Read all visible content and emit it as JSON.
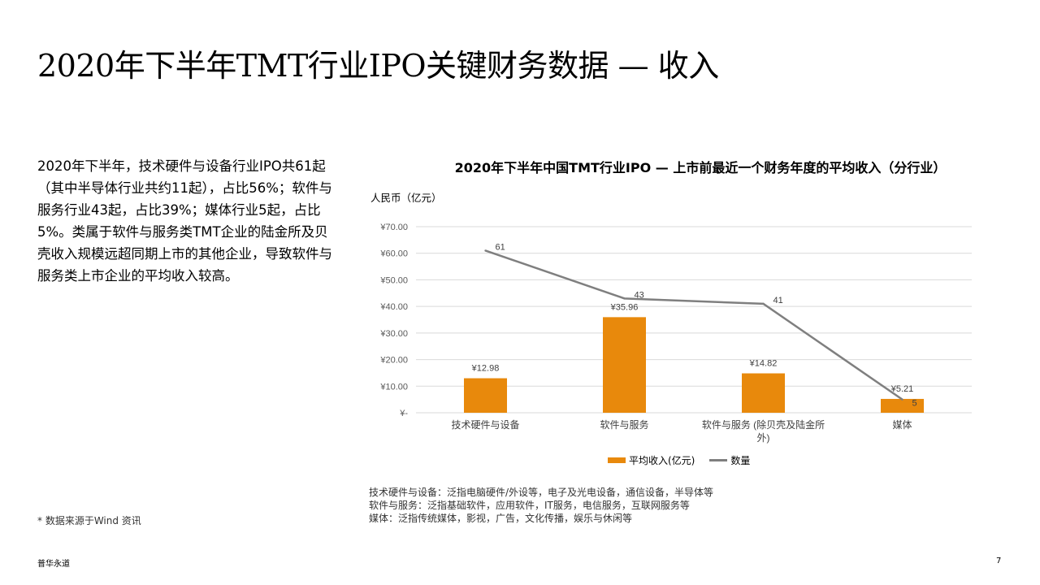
{
  "title": "2020年下半年TMT行业IPO关键财务数据 — 收入",
  "body_text": "2020年下半年，技术硬件与设备行业IPO共61起（其中半导体行业共约11起），占比56%；软件与服务行业43起，占比39%；媒体行业5起，占比5%。类属于软件与服务类TMT企业的陆金所及贝壳收入规模远超同期上市的其他企业，导致软件与服务类上市企业的平均收入较高。",
  "notes": [
    "技术硬件与设备：泛指电脑硬件/外设等，电子及光电设备，通信设备，半导体等",
    "软件与服务：泛指基础软件，应用软件，IT服务，电信服务，互联网服务等",
    "媒体：泛指传统媒体，影视，广告，文化传播，娱乐与休闲等"
  ],
  "source": "* 数据来源于Wind 资讯",
  "footer": "普华永道",
  "page_number": "7",
  "chart_data": {
    "type": "bar",
    "title": "2020年下半年中国TMT行业IPO — 上市前最近一个财务年度的平均收入（分行业）",
    "ylabel": "人民币（亿元）",
    "ylim": [
      0,
      70
    ],
    "yticks": [
      "¥-",
      "¥10.00",
      "¥20.00",
      "¥30.00",
      "¥40.00",
      "¥50.00",
      "¥60.00",
      "¥70.00"
    ],
    "categories": [
      [
        "技术硬件与设备"
      ],
      [
        "软件与服务"
      ],
      [
        "软件与服务 (除贝壳及陆金所",
        "外)"
      ],
      [
        "媒体"
      ]
    ],
    "series": [
      {
        "name": "平均收入(亿元)",
        "type": "bar",
        "color": "#E8890C",
        "values": [
          12.98,
          35.96,
          14.82,
          5.21
        ],
        "labels": [
          "¥12.98",
          "¥35.96",
          "¥14.82",
          "¥5.21"
        ]
      },
      {
        "name": "数量",
        "type": "line",
        "color": "#7F7F7F",
        "values": [
          61,
          43,
          41,
          5
        ],
        "labels": [
          "61",
          "43",
          "41",
          "5"
        ]
      }
    ],
    "grid": true,
    "legend_position": "bottom"
  }
}
